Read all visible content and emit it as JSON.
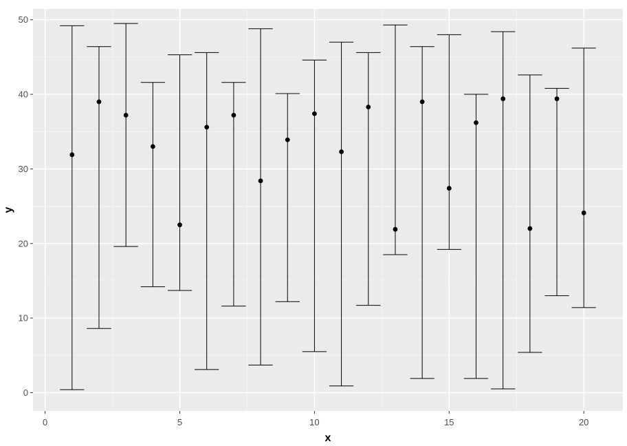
{
  "chart_data": {
    "type": "errorbar",
    "xlabel": "x",
    "ylabel": "y",
    "xlim": [
      -0.45,
      21.45
    ],
    "ylim": [
      -2.45,
      51.45
    ],
    "x_ticks": [
      0,
      5,
      10,
      15,
      20
    ],
    "x_tick_labels": [
      "0",
      "5",
      "10",
      "15",
      "20"
    ],
    "y_ticks": [
      0,
      10,
      20,
      30,
      40,
      50
    ],
    "y_tick_labels": [
      "0",
      "10",
      "20",
      "30",
      "40",
      "50"
    ],
    "grid": true,
    "points": [
      {
        "x": 1,
        "y": 31.9,
        "ymin": 0.4,
        "ymax": 49.2
      },
      {
        "x": 2,
        "y": 39.0,
        "ymin": 8.6,
        "ymax": 46.4
      },
      {
        "x": 3,
        "y": 37.2,
        "ymin": 19.6,
        "ymax": 49.5
      },
      {
        "x": 4,
        "y": 33.0,
        "ymin": 14.2,
        "ymax": 41.6
      },
      {
        "x": 5,
        "y": 22.5,
        "ymin": 13.7,
        "ymax": 45.3
      },
      {
        "x": 6,
        "y": 35.6,
        "ymin": 3.1,
        "ymax": 45.6
      },
      {
        "x": 7,
        "y": 37.2,
        "ymin": 11.6,
        "ymax": 41.6
      },
      {
        "x": 8,
        "y": 28.4,
        "ymin": 3.7,
        "ymax": 48.8
      },
      {
        "x": 9,
        "y": 33.9,
        "ymin": 12.2,
        "ymax": 40.1
      },
      {
        "x": 10,
        "y": 37.4,
        "ymin": 5.5,
        "ymax": 44.6
      },
      {
        "x": 11,
        "y": 32.3,
        "ymin": 0.9,
        "ymax": 47.0
      },
      {
        "x": 12,
        "y": 38.3,
        "ymin": 11.7,
        "ymax": 45.6
      },
      {
        "x": 13,
        "y": 21.9,
        "ymin": 18.5,
        "ymax": 49.3
      },
      {
        "x": 14,
        "y": 39.0,
        "ymin": 1.9,
        "ymax": 46.4
      },
      {
        "x": 15,
        "y": 27.4,
        "ymin": 19.2,
        "ymax": 48.0
      },
      {
        "x": 16,
        "y": 36.2,
        "ymin": 1.9,
        "ymax": 40.0
      },
      {
        "x": 17,
        "y": 39.4,
        "ymin": 0.5,
        "ymax": 48.4
      },
      {
        "x": 18,
        "y": 22.0,
        "ymin": 5.4,
        "ymax": 42.6
      },
      {
        "x": 19,
        "y": 39.4,
        "ymin": 13.0,
        "ymax": 40.8
      },
      {
        "x": 20,
        "y": 24.1,
        "ymin": 11.4,
        "ymax": 46.2
      }
    ],
    "colors": {
      "panel_background": "#ebebeb",
      "grid_major": "#ffffff",
      "grid_minor": "#f5f5f5",
      "marks": "#000000",
      "tick_text": "#4d4d4d",
      "tick_marks": "#333333"
    }
  }
}
